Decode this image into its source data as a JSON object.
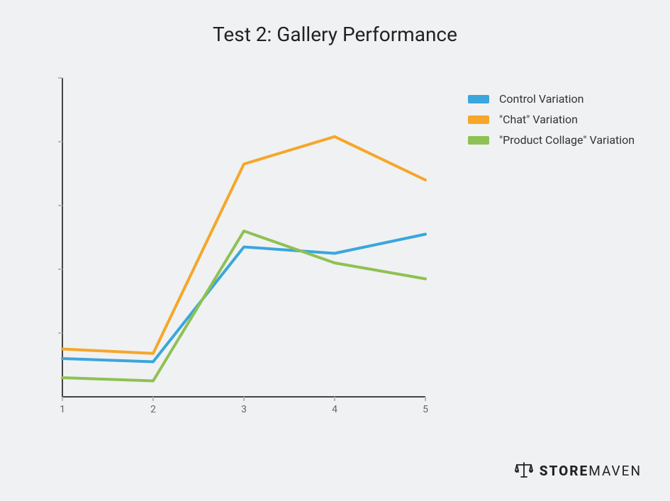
{
  "title": "Test 2: Gallery Performance",
  "background_color": "#f0f1f2",
  "axis_color": "#444444",
  "tick_color": "#b8b8b8",
  "tick_label_color": "#666666",
  "tick_fontsize": 14,
  "title_fontsize": 28,
  "title_color": "#222222",
  "chart": {
    "type": "line",
    "x_values": [
      1,
      2,
      3,
      4,
      5
    ],
    "x_labels": [
      "1",
      "2",
      "3",
      "4",
      "5"
    ],
    "xlim": [
      1,
      5
    ],
    "ylim": [
      0,
      5
    ],
    "y_ticks": [
      0,
      1,
      2,
      3,
      4,
      5
    ],
    "line_width": 4,
    "series": [
      {
        "name": "Control Variation",
        "color": "#3aa6dd",
        "values": [
          0.6,
          0.55,
          2.35,
          2.25,
          2.55
        ]
      },
      {
        "name": "\"Chat\" Variation",
        "color": "#f5a72a",
        "values": [
          0.75,
          0.68,
          3.65,
          4.08,
          3.4
        ]
      },
      {
        "name": "\"Product Collage\" Variation",
        "color": "#8ec153",
        "values": [
          0.3,
          0.25,
          2.6,
          2.1,
          1.85
        ]
      }
    ]
  },
  "legend": {
    "items": [
      {
        "label": "Control Variation",
        "color": "#3aa6dd"
      },
      {
        "label": "\"Chat\" Variation",
        "color": "#f5a72a"
      },
      {
        "label": "\"Product Collage\" Variation",
        "color": "#8ec153"
      }
    ],
    "label_fontsize": 16,
    "label_color": "#333333"
  },
  "brand": {
    "text_bold": "STORE",
    "text_light": "MAVEN",
    "color": "#222222"
  }
}
